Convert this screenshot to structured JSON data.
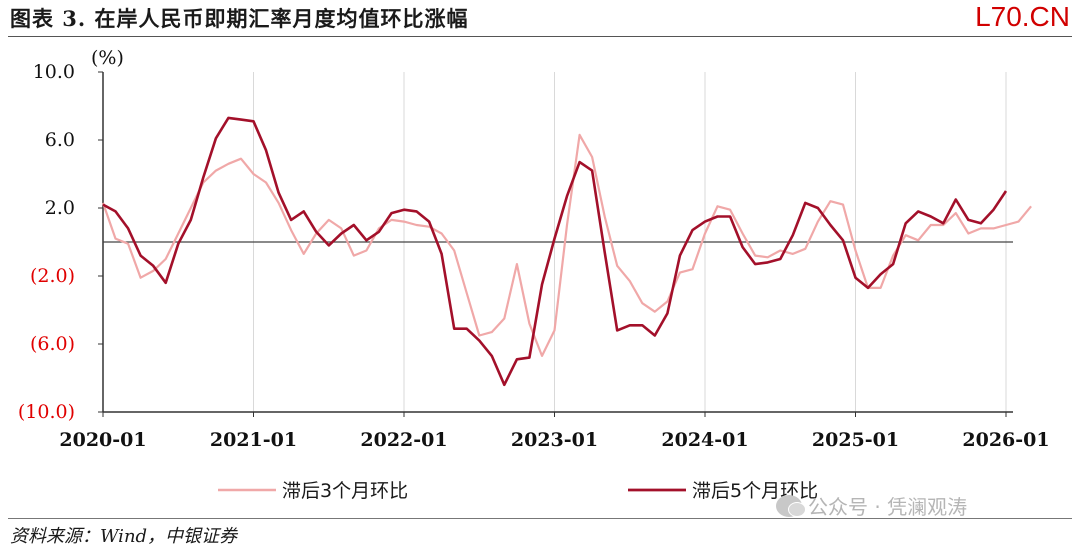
{
  "header": {
    "title": "图表 3. 在岸人民币即期汇率月度均值环比涨幅",
    "brand": "L70.CN"
  },
  "footer": {
    "source": "资料来源：Wind，中银证券",
    "watermark": "公众号 · 凭澜观涛"
  },
  "colors": {
    "series_lag3": "#f0a8a8",
    "series_lag5": "#a3102a",
    "negative_tick": "#e00000",
    "grid": "#d9d9d9"
  },
  "chart_data": {
    "type": "line",
    "unit_label": "(%)",
    "ylim": [
      -10,
      10
    ],
    "y_ticks": [
      {
        "value": 10,
        "label": "10.0"
      },
      {
        "value": 6,
        "label": "6.0"
      },
      {
        "value": 2,
        "label": "2.0"
      },
      {
        "value": -2,
        "label": "(2.0)"
      },
      {
        "value": -6,
        "label": "(6.0)"
      },
      {
        "value": -10,
        "label": "(10.0)"
      }
    ],
    "x_ticks": [
      {
        "month": 0,
        "label": "2020-01"
      },
      {
        "month": 12,
        "label": "2021-01"
      },
      {
        "month": 24,
        "label": "2022-01"
      },
      {
        "month": 36,
        "label": "2023-01"
      },
      {
        "month": 48,
        "label": "2024-01"
      },
      {
        "month": 60,
        "label": "2025-01"
      },
      {
        "month": 72,
        "label": "2026-01"
      }
    ],
    "grid": "vertical",
    "legend_position": "bottom",
    "series": [
      {
        "name": "滞后3个月环比",
        "color": "#f0a8a8",
        "values": [
          2.3,
          0.2,
          -0.1,
          -2.1,
          -1.7,
          -1.0,
          0.5,
          2.0,
          3.5,
          4.2,
          4.6,
          4.9,
          4.0,
          3.5,
          2.3,
          0.7,
          -0.7,
          0.5,
          1.3,
          0.8,
          -0.8,
          -0.5,
          0.8,
          1.3,
          1.2,
          1.0,
          0.9,
          0.5,
          -0.5,
          -3.0,
          -5.5,
          -5.3,
          -4.5,
          -1.3,
          -4.8,
          -6.7,
          -5.2,
          1.0,
          6.3,
          5.0,
          1.5,
          -1.4,
          -2.3,
          -3.6,
          -4.1,
          -3.5,
          -1.8,
          -1.6,
          0.5,
          2.1,
          1.9,
          0.5,
          -0.8,
          -0.9,
          -0.5,
          -0.7,
          -0.4,
          1.2,
          2.4,
          2.2,
          -0.5,
          -2.7,
          -2.7,
          -0.8,
          0.4,
          0.1,
          1.0,
          1.0,
          1.7,
          0.5,
          0.8,
          0.8,
          1.0,
          1.2,
          2.1
        ]
      },
      {
        "name": "滞后5个月环比",
        "color": "#a3102a",
        "values": [
          2.2,
          1.8,
          0.8,
          -0.8,
          -1.4,
          -2.4,
          -0.1,
          1.3,
          3.8,
          6.1,
          7.3,
          7.2,
          7.1,
          5.4,
          2.9,
          1.3,
          1.8,
          0.6,
          -0.2,
          0.5,
          1.0,
          0.1,
          0.6,
          1.7,
          1.9,
          1.8,
          1.2,
          -0.7,
          -5.1,
          -5.1,
          -5.8,
          -6.7,
          -8.4,
          -6.9,
          -6.8,
          -2.5,
          0.2,
          2.7,
          4.7,
          4.2,
          -0.6,
          -5.2,
          -4.9,
          -4.9,
          -5.5,
          -4.2,
          -0.8,
          0.7,
          1.2,
          1.5,
          1.5,
          -0.3,
          -1.3,
          -1.2,
          -1.0,
          0.4,
          2.3,
          2.0,
          1.0,
          0.1,
          -2.1,
          -2.7,
          -1.9,
          -1.3,
          1.1,
          1.8,
          1.5,
          1.1,
          2.5,
          1.3,
          1.1,
          1.9,
          3.0
        ]
      }
    ]
  }
}
